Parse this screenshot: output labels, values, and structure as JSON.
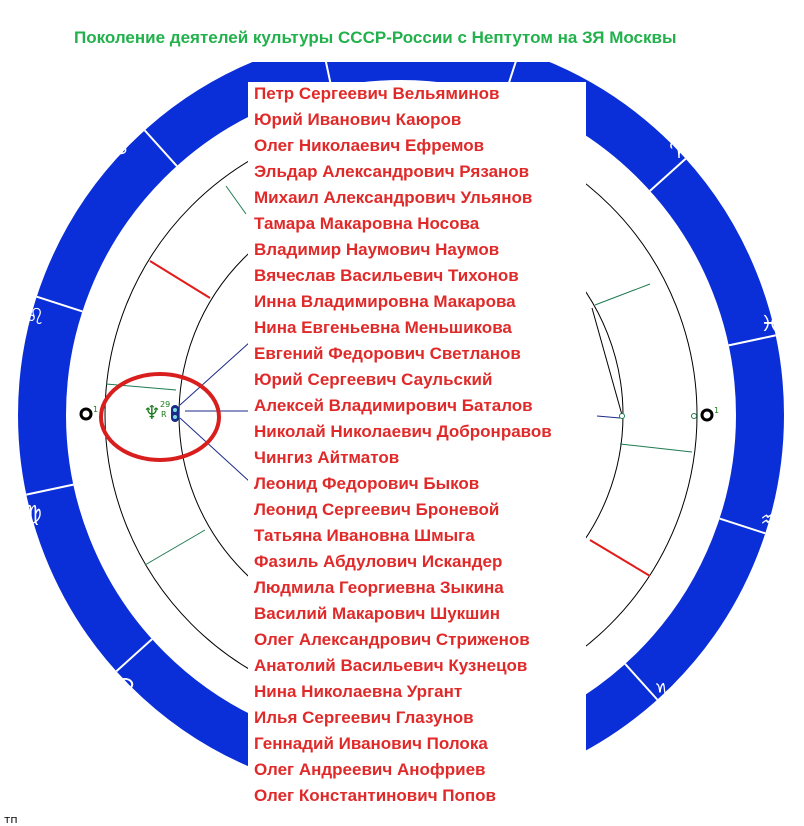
{
  "title": "Поколение деятелей культуры СССР-России с Нептутом на ЗЯ Москвы",
  "names": [
    "Петр Сергеевич Вельяминов",
    "Юрий Иванович Каюров",
    "Олег Николаевич Ефремов",
    "Эльдар Александрович Рязанов",
    "Михаил Александрович Ульянов",
    "Тамара Макаровна Носова",
    "Владимир Наумович Наумов",
    "Вячеслав Васильевич Тихонов",
    "Инна Владимировна Макарова",
    "Нина Евгеньевна Меньшикова",
    "Евгений Федорович Светланов",
    "Юрий Сергеевич Саульский",
    "Алексей Владимирович Баталов",
    "Николай Николаевич Добронравов",
    "Чингиз Айтматов",
    "Леонид Федорович Быков",
    "Леонид Сергеевич Броневой",
    "Татьяна Ивановна Шмыга",
    "Фазиль Абдулович Искандер",
    "Людмила Георгиевна Зыкина",
    "Василий Макарович Шукшин",
    "Олег Александрович Стриженов",
    "Анатолий Васильевич Кузнецов",
    "Нина Николаевна Ургант",
    "Илья Сергеевич Глазунов",
    "Геннадий Иванович Полока",
    "Олег Андреевич Анофриев",
    "Олег Константинович Попов"
  ],
  "zodiac": {
    "cancer": "♋",
    "aries": "♈",
    "leo": "♌",
    "pisces": "♓",
    "virgo": "♍",
    "aquarius": "♒",
    "north_node": "☊",
    "capricorn": "♑"
  },
  "planet": {
    "glyph": "♆",
    "degree": "29",
    "retro": "R"
  },
  "left_marker_label": "1",
  "right_marker_label": "1",
  "corner_text": "тп",
  "colors": {
    "ring": "#0a2ed8",
    "title": "#22b14c",
    "names": "#e02a2a",
    "highlight": "#d91e1e",
    "aspect_green": "#1e7a4e",
    "aspect_red": "#e31b1b",
    "aspect_blue": "#1a2a8a"
  }
}
